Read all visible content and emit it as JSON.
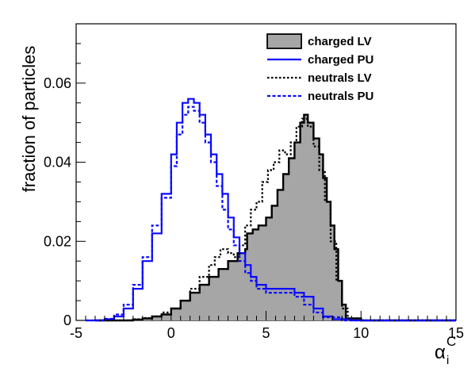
{
  "chart_data": {
    "type": "histogram",
    "ylabel": "fraction of particles",
    "xlabel": "α",
    "xlabel_sub": "i",
    "xlabel_sup": "C",
    "xlim": [
      -5,
      15
    ],
    "ylim": [
      0,
      0.075
    ],
    "grid": false,
    "legend_position": "top-right",
    "x_ticks": [
      {
        "value": -5,
        "label": "-5"
      },
      {
        "value": 0,
        "label": "0"
      },
      {
        "value": 5,
        "label": "5"
      },
      {
        "value": 10,
        "label": "10"
      },
      {
        "value": 15,
        "label": "15"
      }
    ],
    "y_ticks": [
      {
        "value": 0,
        "label": "0"
      },
      {
        "value": 0.02,
        "label": "0.02"
      },
      {
        "value": 0.04,
        "label": "0.04"
      },
      {
        "value": 0.06,
        "label": "0.06"
      }
    ],
    "series": [
      {
        "name": "charged LV",
        "style": "filled",
        "color": "#000000",
        "fill": "#a6a6a6",
        "points": [
          [
            -4,
            0
          ],
          [
            -3,
            0
          ],
          [
            -2,
            0.0002
          ],
          [
            -1.5,
            0.0005
          ],
          [
            -1,
            0.001
          ],
          [
            -0.5,
            0.0015
          ],
          [
            0,
            0.003
          ],
          [
            0.5,
            0.005
          ],
          [
            1,
            0.007
          ],
          [
            1.5,
            0.009
          ],
          [
            2,
            0.011
          ],
          [
            2.5,
            0.013
          ],
          [
            3,
            0.015
          ],
          [
            3.5,
            0.017
          ],
          [
            3.9,
            0.018
          ],
          [
            4,
            0.022
          ],
          [
            4.3,
            0.023
          ],
          [
            4.6,
            0.024
          ],
          [
            5,
            0.026
          ],
          [
            5.3,
            0.029
          ],
          [
            5.6,
            0.033
          ],
          [
            5.9,
            0.037
          ],
          [
            6.2,
            0.041
          ],
          [
            6.5,
            0.045
          ],
          [
            6.8,
            0.05
          ],
          [
            7,
            0.052
          ],
          [
            7.2,
            0.05
          ],
          [
            7.5,
            0.046
          ],
          [
            7.8,
            0.042
          ],
          [
            8,
            0.036
          ],
          [
            8.2,
            0.03
          ],
          [
            8.4,
            0.024
          ],
          [
            8.6,
            0.018
          ],
          [
            8.8,
            0.01
          ],
          [
            9,
            0.004
          ],
          [
            9.2,
            0.0005
          ],
          [
            10,
            0
          ],
          [
            15,
            0
          ]
        ]
      },
      {
        "name": "charged PU",
        "style": "solid",
        "color": "#0a0aff",
        "points": [
          [
            -4.5,
            0
          ],
          [
            -3.5,
            0.0003
          ],
          [
            -3,
            0.001
          ],
          [
            -2.5,
            0.003
          ],
          [
            -2,
            0.008
          ],
          [
            -1.5,
            0.015
          ],
          [
            -1,
            0.022
          ],
          [
            -0.5,
            0.032
          ],
          [
            0,
            0.042
          ],
          [
            0.3,
            0.05
          ],
          [
            0.6,
            0.055
          ],
          [
            0.9,
            0.056
          ],
          [
            1.2,
            0.055
          ],
          [
            1.5,
            0.052
          ],
          [
            1.8,
            0.047
          ],
          [
            2.1,
            0.042
          ],
          [
            2.4,
            0.037
          ],
          [
            2.7,
            0.032
          ],
          [
            3,
            0.026
          ],
          [
            3.3,
            0.021
          ],
          [
            3.6,
            0.017
          ],
          [
            3.9,
            0.014
          ],
          [
            4.2,
            0.011
          ],
          [
            4.5,
            0.009
          ],
          [
            5,
            0.008
          ],
          [
            5.5,
            0.008
          ],
          [
            6,
            0.008
          ],
          [
            6.5,
            0.007
          ],
          [
            7,
            0.006
          ],
          [
            7.5,
            0.003
          ],
          [
            8,
            0.001
          ],
          [
            8.5,
            0.0003
          ],
          [
            9.5,
            0
          ],
          [
            15,
            0
          ]
        ]
      },
      {
        "name": "neutrals LV",
        "style": "dotted",
        "color": "#000000",
        "points": [
          [
            -4,
            0
          ],
          [
            -3,
            0
          ],
          [
            -2,
            0.0003
          ],
          [
            -1.5,
            0.0006
          ],
          [
            -1,
            0.001
          ],
          [
            -0.5,
            0.002
          ],
          [
            0,
            0.003
          ],
          [
            0.5,
            0.005
          ],
          [
            1,
            0.008
          ],
          [
            1.5,
            0.011
          ],
          [
            2,
            0.014
          ],
          [
            2.3,
            0.016
          ],
          [
            2.6,
            0.018
          ],
          [
            3,
            0.017
          ],
          [
            3.3,
            0.016
          ],
          [
            3.6,
            0.019
          ],
          [
            3.9,
            0.024
          ],
          [
            4.2,
            0.028
          ],
          [
            4.5,
            0.03
          ],
          [
            4.8,
            0.035
          ],
          [
            5.1,
            0.038
          ],
          [
            5.4,
            0.04
          ],
          [
            5.7,
            0.043
          ],
          [
            6,
            0.042
          ],
          [
            6.3,
            0.045
          ],
          [
            6.6,
            0.049
          ],
          [
            6.9,
            0.051
          ],
          [
            7.2,
            0.049
          ],
          [
            7.5,
            0.044
          ],
          [
            7.8,
            0.038
          ],
          [
            8.1,
            0.03
          ],
          [
            8.4,
            0.02
          ],
          [
            8.7,
            0.01
          ],
          [
            9,
            0.003
          ],
          [
            9.3,
            0.0005
          ],
          [
            10,
            0
          ],
          [
            15,
            0
          ]
        ]
      },
      {
        "name": "neutrals PU",
        "style": "dashed",
        "color": "#0a0aff",
        "points": [
          [
            -4.5,
            0
          ],
          [
            -3.5,
            0.0004
          ],
          [
            -3,
            0.0015
          ],
          [
            -2.5,
            0.004
          ],
          [
            -2,
            0.009
          ],
          [
            -1.5,
            0.016
          ],
          [
            -1,
            0.024
          ],
          [
            -0.5,
            0.031
          ],
          [
            0,
            0.039
          ],
          [
            0.3,
            0.047
          ],
          [
            0.6,
            0.052
          ],
          [
            0.9,
            0.054
          ],
          [
            1.2,
            0.053
          ],
          [
            1.5,
            0.05
          ],
          [
            1.8,
            0.045
          ],
          [
            2.1,
            0.04
          ],
          [
            2.4,
            0.034
          ],
          [
            2.7,
            0.028
          ],
          [
            3,
            0.023
          ],
          [
            3.3,
            0.019
          ],
          [
            3.6,
            0.015
          ],
          [
            3.9,
            0.012
          ],
          [
            4.2,
            0.01
          ],
          [
            4.5,
            0.008
          ],
          [
            5,
            0.007
          ],
          [
            5.5,
            0.007
          ],
          [
            6,
            0.007
          ],
          [
            6.5,
            0.006
          ],
          [
            7,
            0.004
          ],
          [
            7.5,
            0.002
          ],
          [
            8,
            0.0008
          ],
          [
            9,
            0
          ],
          [
            15,
            0
          ]
        ]
      }
    ]
  }
}
